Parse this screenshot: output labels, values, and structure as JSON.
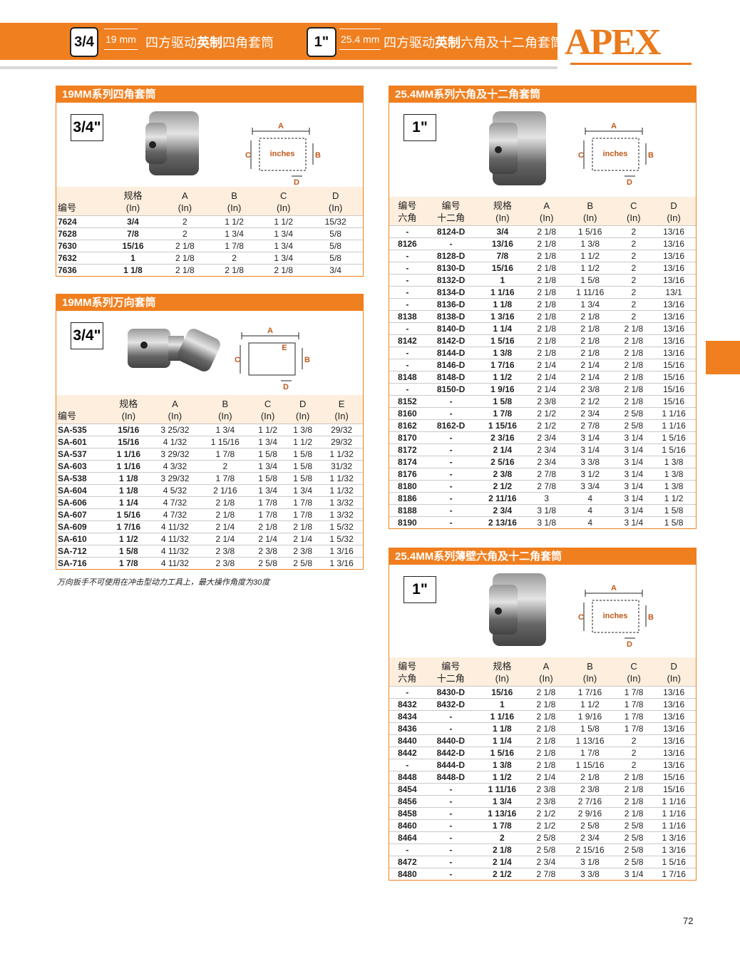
{
  "header": {
    "badge_1": "3/4",
    "size_1": "19 mm",
    "title_1": [
      "四方驱动",
      "英制",
      "四角套筒"
    ],
    "badge_2": "1\"",
    "size_2": "25.4 mm",
    "title_2": [
      "四方驱动",
      "英制",
      "六角及十二角套筒"
    ],
    "logo": "APEX"
  },
  "sections": [
    {
      "title": "19MM系列四角套筒",
      "size_badge": "3/4\"",
      "diagram": {
        "a": "A",
        "b": "B",
        "c": "C",
        "d": "D",
        "unit": "inches"
      },
      "columns": [
        [
          "编号"
        ],
        [
          "规格",
          "(In)"
        ],
        [
          "A",
          "(In)"
        ],
        [
          "B",
          "(In)"
        ],
        [
          "C",
          "(In)"
        ],
        [
          "D",
          "(In)"
        ]
      ],
      "rows": [
        [
          "7624",
          "3/4",
          "2",
          "1 1/2",
          "1 1/2",
          "15/32"
        ],
        [
          "7628",
          "7/8",
          "2",
          "1 3/4",
          "1 3/4",
          "5/8"
        ],
        [
          "7630",
          "15/16",
          "2 1/8",
          "1 7/8",
          "1 3/4",
          "5/8"
        ],
        [
          "7632",
          "1",
          "2 1/8",
          "2",
          "1 3/4",
          "5/8"
        ],
        [
          "7636",
          "1 1/8",
          "2 1/8",
          "2 1/8",
          "2 1/8",
          "3/4"
        ]
      ]
    },
    {
      "title": "19MM系列万向套筒",
      "size_badge": "3/4\"",
      "diagram": {
        "a": "A",
        "b": "B",
        "c": "C",
        "d": "D",
        "e": "E"
      },
      "columns": [
        [
          "编号"
        ],
        [
          "规格",
          "(In)"
        ],
        [
          "A",
          "(In)"
        ],
        [
          "B",
          "(In)"
        ],
        [
          "C",
          "(In)"
        ],
        [
          "D",
          "(In)"
        ],
        [
          "E",
          "(In)"
        ]
      ],
      "rows": [
        [
          "SA-535",
          "15/16",
          "3 25/32",
          "1 3/4",
          "1 1/2",
          "1 3/8",
          "29/32"
        ],
        [
          "SA-601",
          "15/16",
          "4 1/32",
          "1 15/16",
          "1 3/4",
          "1 1/2",
          "29/32"
        ],
        [
          "SA-537",
          "1 1/16",
          "3 29/32",
          "1 7/8",
          "1 5/8",
          "1 5/8",
          "1 1/32"
        ],
        [
          "SA-603",
          "1 1/16",
          "4 3/32",
          "2",
          "1 3/4",
          "1 5/8",
          "31/32"
        ],
        [
          "SA-538",
          "1 1/8",
          "3 29/32",
          "1 7/8",
          "1 5/8",
          "1 5/8",
          "1 1/32"
        ],
        [
          "SA-604",
          "1 1/8",
          "4 5/32",
          "2 1/16",
          "1 3/4",
          "1 3/4",
          "1 1/32"
        ],
        [
          "SA-606",
          "1 1/4",
          "4 7/32",
          "2 1/8",
          "1 7/8",
          "1 7/8",
          "1 3/32"
        ],
        [
          "SA-607",
          "1 5/16",
          "4 7/32",
          "2 1/8",
          "1 7/8",
          "1 7/8",
          "1 3/32"
        ],
        [
          "SA-609",
          "1 7/16",
          "4 11/32",
          "2 1/4",
          "2 1/8",
          "2 1/8",
          "1 5/32"
        ],
        [
          "SA-610",
          "1 1/2",
          "4 11/32",
          "2 1/4",
          "2 1/4",
          "2 1/4",
          "1 5/32"
        ],
        [
          "SA-712",
          "1 5/8",
          "4 11/32",
          "2 3/8",
          "2 3/8",
          "2 3/8",
          "1 3/16"
        ],
        [
          "SA-716",
          "1 7/8",
          "4 11/32",
          "2 3/8",
          "2 5/8",
          "2 5/8",
          "1 3/16"
        ]
      ],
      "note": "万向扳手不可使用在冲击型动力工具上，最大操作角度为30度"
    },
    {
      "title": "25.4MM系列六角及十二角套筒",
      "size_badge": "1\"",
      "diagram": {
        "a": "A",
        "b": "B",
        "c": "C",
        "d": "D",
        "unit": "inches"
      },
      "columns": [
        [
          "编号",
          "六角"
        ],
        [
          "编号",
          "十二角"
        ],
        [
          "规格",
          "(In)"
        ],
        [
          "A",
          "(In)"
        ],
        [
          "B",
          "(In)"
        ],
        [
          "C",
          "(In)"
        ],
        [
          "D",
          "(In)"
        ]
      ],
      "rows": [
        [
          "-",
          "8124-D",
          "3/4",
          "2 1/8",
          "1 5/16",
          "2",
          "13/16"
        ],
        [
          "8126",
          "-",
          "13/16",
          "2 1/8",
          "1 3/8",
          "2",
          "13/16"
        ],
        [
          "-",
          "8128-D",
          "7/8",
          "2 1/8",
          "1 1/2",
          "2",
          "13/16"
        ],
        [
          "-",
          "8130-D",
          "15/16",
          "2 1/8",
          "1 1/2",
          "2",
          "13/16"
        ],
        [
          "-",
          "8132-D",
          "1",
          "2 1/8",
          "1 5/8",
          "2",
          "13/16"
        ],
        [
          "-",
          "8134-D",
          "1 1/16",
          "2 1/8",
          "1 11/16",
          "2",
          "13/1"
        ],
        [
          "-",
          "8136-D",
          "1 1/8",
          "2 1/8",
          "1 3/4",
          "2",
          "13/16"
        ],
        [
          "8138",
          "8138-D",
          "1 3/16",
          "2 1/8",
          "2 1/8",
          "2",
          "13/16"
        ],
        [
          "-",
          "8140-D",
          "1 1/4",
          "2 1/8",
          "2 1/8",
          "2 1/8",
          "13/16"
        ],
        [
          "8142",
          "8142-D",
          "1 5/16",
          "2 1/8",
          "2 1/8",
          "2 1/8",
          "13/16"
        ],
        [
          "-",
          "8144-D",
          "1 3/8",
          "2 1/8",
          "2 1/8",
          "2 1/8",
          "13/16"
        ],
        [
          "-",
          "8146-D",
          "1 7/16",
          "2 1/4",
          "2 1/4",
          "2 1/8",
          "15/16"
        ],
        [
          "8148",
          "8148-D",
          "1 1/2",
          "2 1/4",
          "2 1/4",
          "2 1/8",
          "15/16"
        ],
        [
          "-",
          "8150-D",
          "1 9/16",
          "2 1/4",
          "2 3/8",
          "2 1/8",
          "15/16"
        ],
        [
          "8152",
          "-",
          "1 5/8",
          "2 3/8",
          "2 1/2",
          "2 1/8",
          "15/16"
        ],
        [
          "8160",
          "-",
          "1 7/8",
          "2 1/2",
          "2 3/4",
          "2 5/8",
          "1 1/16"
        ],
        [
          "8162",
          "8162-D",
          "1 15/16",
          "2 1/2",
          "2 7/8",
          "2 5/8",
          "1 1/16"
        ],
        [
          "8170",
          "-",
          "2 3/16",
          "2 3/4",
          "3 1/4",
          "3 1/4",
          "1 5/16"
        ],
        [
          "8172",
          "-",
          "2 1/4",
          "2 3/4",
          "3 1/4",
          "3 1/4",
          "1 5/16"
        ],
        [
          "8174",
          "-",
          "2 5/16",
          "2 3/4",
          "3 3/8",
          "3 1/4",
          "1 3/8"
        ],
        [
          "8176",
          "-",
          "2 3/8",
          "2 7/8",
          "3 1/2",
          "3 1/4",
          "1 3/8"
        ],
        [
          "8180",
          "-",
          "2 1/2",
          "2 7/8",
          "3 3/4",
          "3 1/4",
          "1 3/8"
        ],
        [
          "8186",
          "-",
          "2 11/16",
          "3",
          "4",
          "3 1/4",
          "1 1/2"
        ],
        [
          "8188",
          "-",
          "2 3/4",
          "3 1/8",
          "4",
          "3 1/4",
          "1 5/8"
        ],
        [
          "8190",
          "-",
          "2 13/16",
          "3 1/8",
          "4",
          "3 1/4",
          "1 5/8"
        ]
      ]
    },
    {
      "title": "25.4MM系列薄壁六角及十二角套筒",
      "size_badge": "1\"",
      "diagram": {
        "a": "A",
        "b": "B",
        "c": "C",
        "d": "D",
        "unit": "inches"
      },
      "columns": [
        [
          "编号",
          "六角"
        ],
        [
          "编号",
          "十二角"
        ],
        [
          "规格",
          "(In)"
        ],
        [
          "A",
          "(In)"
        ],
        [
          "B",
          "(In)"
        ],
        [
          "C",
          "(In)"
        ],
        [
          "D",
          "(In)"
        ]
      ],
      "rows": [
        [
          "-",
          "8430-D",
          "15/16",
          "2 1/8",
          "1 7/16",
          "1 7/8",
          "13/16"
        ],
        [
          "8432",
          "8432-D",
          "1",
          "2 1/8",
          "1 1/2",
          "1 7/8",
          "13/16"
        ],
        [
          "8434",
          "-",
          "1 1/16",
          "2 1/8",
          "1 9/16",
          "1 7/8",
          "13/16"
        ],
        [
          "8436",
          "-",
          "1 1/8",
          "2 1/8",
          "1 5/8",
          "1 7/8",
          "13/16"
        ],
        [
          "8440",
          "8440-D",
          "1 1/4",
          "2 1/8",
          "1 13/16",
          "2",
          "13/16"
        ],
        [
          "8442",
          "8442-D",
          "1 5/16",
          "2 1/8",
          "1 7/8",
          "2",
          "13/16"
        ],
        [
          "-",
          "8444-D",
          "1 3/8",
          "2 1/8",
          "1 15/16",
          "2",
          "13/16"
        ],
        [
          "8448",
          "8448-D",
          "1 1/2",
          "2 1/4",
          "2 1/8",
          "2 1/8",
          "15/16"
        ],
        [
          "8454",
          "-",
          "1 11/16",
          "2 3/8",
          "2 3/8",
          "2 1/8",
          "15/16"
        ],
        [
          "8456",
          "-",
          "1 3/4",
          "2 3/8",
          "2 7/16",
          "2 1/8",
          "1 1/16"
        ],
        [
          "8458",
          "-",
          "1 13/16",
          "2 1/2",
          "2 9/16",
          "2 1/8",
          "1 1/16"
        ],
        [
          "8460",
          "-",
          "1 7/8",
          "2 1/2",
          "2 5/8",
          "2 5/8",
          "1 1/16"
        ],
        [
          "8464",
          "-",
          "2",
          "2 5/8",
          "2 3/4",
          "2 5/8",
          "1 3/16"
        ],
        [
          "-",
          "-",
          "2 1/8",
          "2 5/8",
          "2 15/16",
          "2 5/8",
          "1 3/16"
        ],
        [
          "8472",
          "-",
          "2 1/4",
          "2 3/4",
          "3 1/8",
          "2 5/8",
          "1 5/16"
        ],
        [
          "8480",
          "-",
          "2 1/2",
          "2 7/8",
          "3 3/8",
          "3 1/4",
          "1 7/16"
        ]
      ]
    }
  ],
  "page_number": "72"
}
